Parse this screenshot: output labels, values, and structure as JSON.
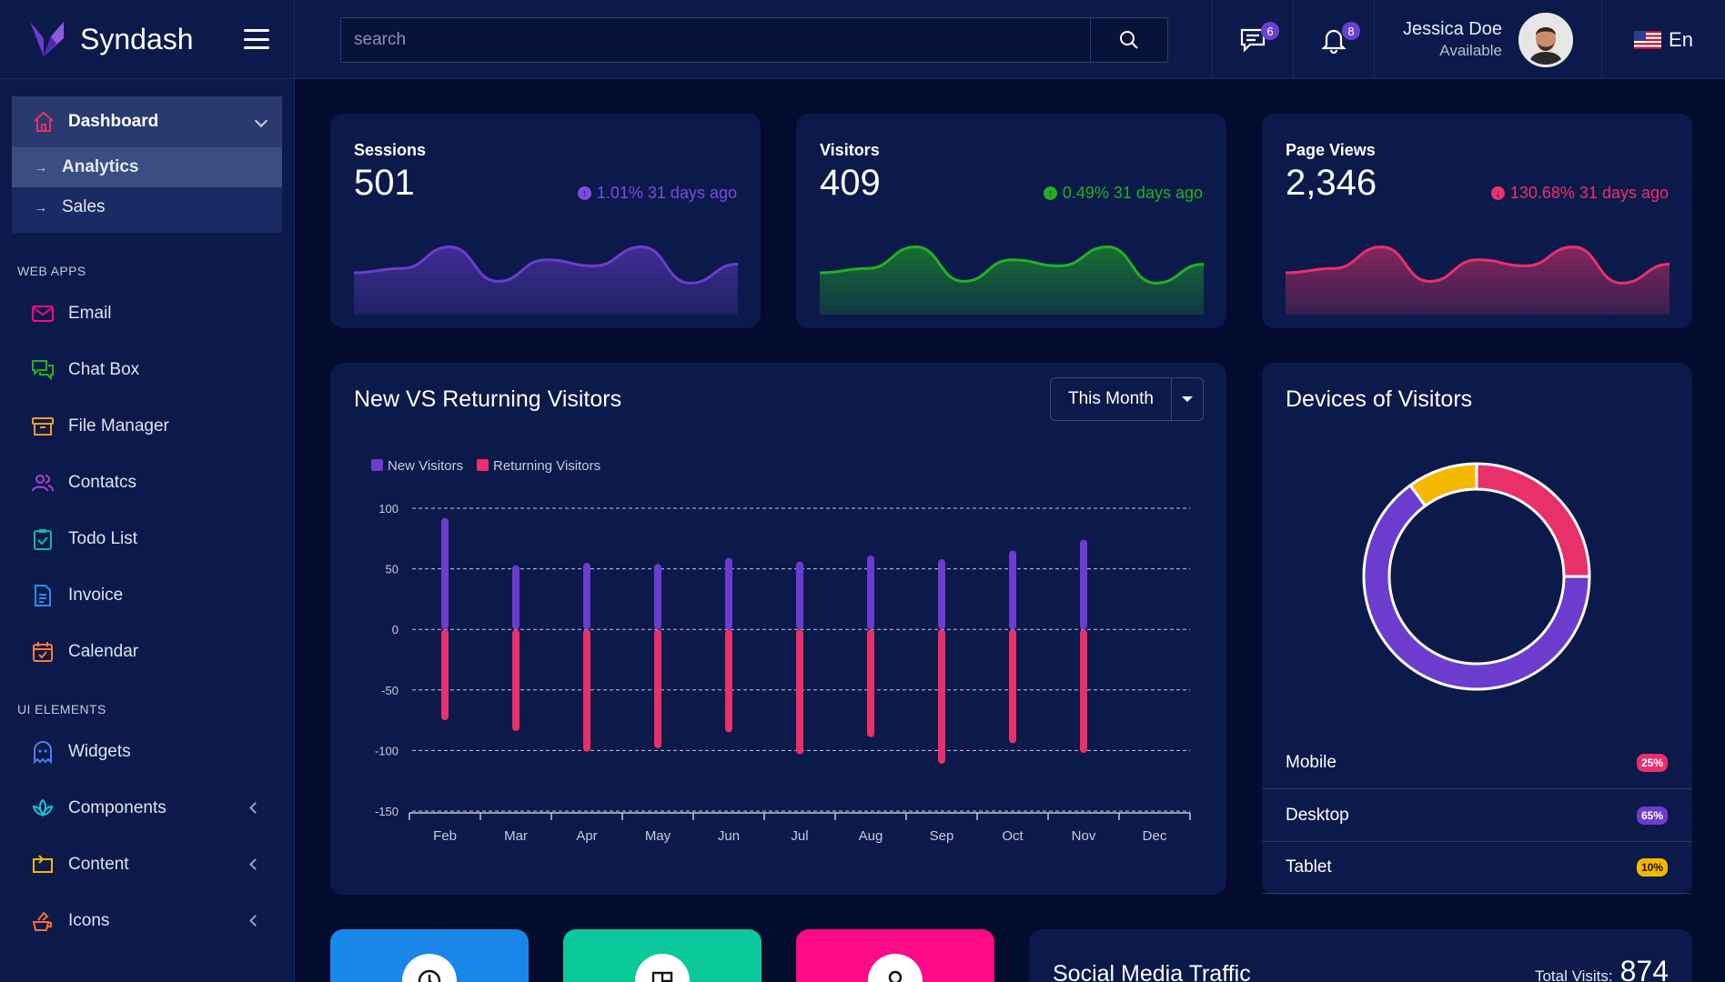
{
  "brand": {
    "name": "Syndash"
  },
  "search": {
    "placeholder": "search"
  },
  "topbar": {
    "messages_count": "6",
    "notifications_count": "8",
    "user_name": "Jessica Doe",
    "user_status": "Available",
    "language": "En"
  },
  "sidebar": {
    "dashboard": "Dashboard",
    "dashboard_sub": [
      "Analytics",
      "Sales"
    ],
    "section_web_apps": "WEB APPS",
    "web_apps": [
      "Email",
      "Chat Box",
      "File Manager",
      "Contatcs",
      "Todo List",
      "Invoice",
      "Calendar"
    ],
    "section_ui": "UI ELEMENTS",
    "ui_elements": [
      "Widgets",
      "Components",
      "Content",
      "Icons"
    ]
  },
  "stats": [
    {
      "title": "Sessions",
      "value": "501",
      "change": "1.01% 31 days ago",
      "color": "#6c3ccf",
      "trend": [
        40,
        45,
        70,
        30,
        55,
        48,
        70,
        28,
        50
      ]
    },
    {
      "title": "Visitors",
      "value": "409",
      "change": "0.49% 31 days ago",
      "color": "#23b023",
      "trend": [
        40,
        45,
        70,
        30,
        55,
        48,
        70,
        28,
        50
      ]
    },
    {
      "title": "Page Views",
      "value": "2,346",
      "change": "130.68% 31 days ago",
      "color": "#e8306a",
      "trend": [
        40,
        45,
        70,
        30,
        55,
        48,
        70,
        28,
        50
      ]
    }
  ],
  "visitors_panel": {
    "title": "New VS Returning Visitors",
    "period": "This Month"
  },
  "devices_panel": {
    "title": "Devices of Visitors",
    "rows": [
      {
        "label": "Mobile",
        "pct": "25%",
        "color": "#e8306a"
      },
      {
        "label": "Desktop",
        "pct": "65%",
        "color": "#6c3ccf"
      },
      {
        "label": "Tablet",
        "pct": "10%",
        "color": "#f5b800"
      }
    ]
  },
  "social_panel": {
    "title": "Social Media Traffic",
    "total_label": "Total Visits:",
    "total_value": "874"
  },
  "tiles": [
    {
      "color": "#1a86e8",
      "icon": "clock-icon"
    },
    {
      "color": "#0cc99b",
      "icon": "book-icon"
    },
    {
      "color": "#ff0a86",
      "icon": "user-icon"
    }
  ],
  "chart_data": [
    {
      "type": "bar",
      "categories": [
        "Feb",
        "Mar",
        "Apr",
        "May",
        "Jun",
        "Jul",
        "Aug",
        "Sep",
        "Oct",
        "Nov",
        "Dec"
      ],
      "series": [
        {
          "name": "New Visitors",
          "color": "#6c3ccf",
          "values": [
            92,
            53,
            55,
            54,
            59,
            56,
            61,
            58,
            65,
            74,
            0
          ]
        },
        {
          "name": "Returning Visitors",
          "color": "#e8306a",
          "values": [
            -75,
            -84,
            -101,
            -98,
            -85,
            -103,
            -89,
            -111,
            -94,
            -102,
            0
          ]
        }
      ],
      "y_ticks": [
        "100",
        "50",
        "0",
        "-50",
        "-100",
        "-150"
      ],
      "ylim": [
        -150,
        100
      ],
      "grid": true,
      "legend": "top-left"
    },
    {
      "type": "pie",
      "categories": [
        "Mobile",
        "Desktop",
        "Tablet"
      ],
      "values": [
        25,
        65,
        10
      ],
      "colors": [
        "#e8306a",
        "#6c3ccf",
        "#f5b800"
      ]
    }
  ]
}
